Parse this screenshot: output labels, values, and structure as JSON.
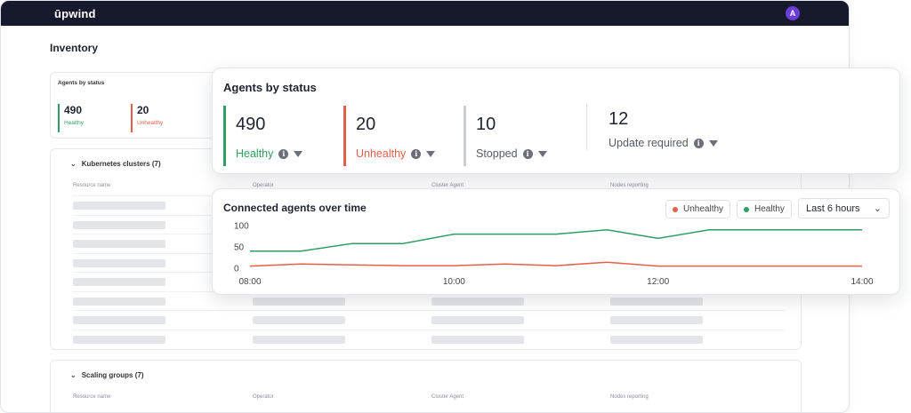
{
  "topbar": {
    "logo": "ūpwind",
    "avatar_initial": "A"
  },
  "page": {
    "title": "Inventory"
  },
  "background_summary": {
    "title": "Agents by status",
    "items": [
      {
        "value": "490",
        "label": "Healthy",
        "color": "#2f9e63"
      },
      {
        "value": "20",
        "label": "Unhealthy",
        "color": "#e5604a"
      }
    ]
  },
  "sections": [
    {
      "title": "Kubernetes clusters (7)",
      "columns": [
        "Resource name",
        "Operator",
        "Cluster Agent",
        "Nodes reporting"
      ]
    },
    {
      "title": "Scaling groups (7)",
      "columns": [
        "Resource name",
        "Operator",
        "Cluster Agent",
        "Nodes reporting"
      ]
    }
  ],
  "status_card": {
    "title": "Agents by status",
    "stats": [
      {
        "value": "490",
        "label": "Healthy",
        "color": "#2f9e63",
        "label_color": "#2f9e63"
      },
      {
        "value": "20",
        "label": "Unhealthy",
        "color": "#e5604a",
        "label_color": "#e5604a"
      },
      {
        "value": "10",
        "label": "Stopped",
        "color": "#c9ccd2",
        "label_color": "#555a64"
      },
      {
        "value": "12",
        "label": "Update required",
        "color": "",
        "label_color": "#555a64"
      }
    ]
  },
  "timeline_card": {
    "title": "Connected agents over time",
    "legend": [
      {
        "label": "Unhealthy",
        "color": "#e5604a"
      },
      {
        "label": "Healthy",
        "color": "#2f9e63"
      }
    ],
    "range_select": "Last 6 hours"
  },
  "chart_data": {
    "type": "line",
    "x": [
      "08:00",
      "08:30",
      "09:00",
      "09:30",
      "10:00",
      "10:30",
      "11:00",
      "11:30",
      "12:00",
      "12:30",
      "13:00",
      "13:30",
      "14:00"
    ],
    "xticks": [
      "08:00",
      "10:00",
      "12:00",
      "14:00"
    ],
    "yticks": [
      0,
      50,
      100
    ],
    "ylim": [
      0,
      100
    ],
    "series": [
      {
        "name": "Healthy",
        "color": "#2f9e63",
        "values": [
          40,
          40,
          58,
          58,
          80,
          80,
          80,
          90,
          70,
          90,
          90,
          90,
          90
        ]
      },
      {
        "name": "Unhealthy",
        "color": "#e5604a",
        "values": [
          5,
          10,
          8,
          6,
          6,
          10,
          6,
          14,
          5,
          5,
          5,
          5,
          5
        ]
      }
    ]
  }
}
